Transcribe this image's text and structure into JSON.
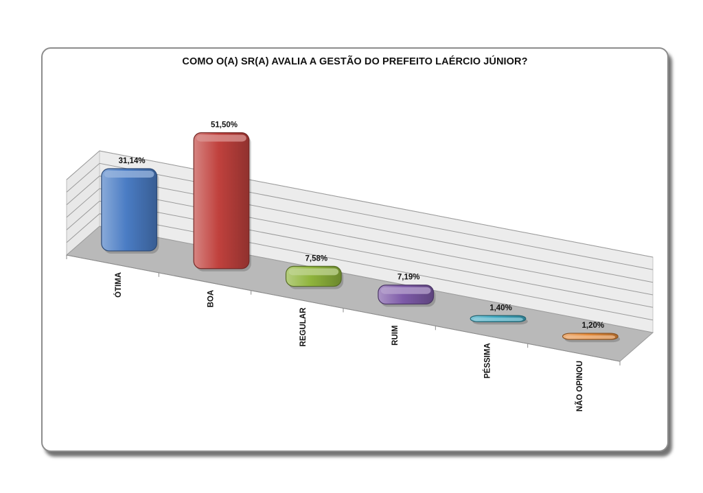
{
  "chart_data": {
    "type": "bar",
    "title": "COMO O(A) SR(A) AVALIA A GESTÃO DO PREFEITO LAÉRCIO JÚNIOR?",
    "categories": [
      "ÓTIMA",
      "BOA",
      "REGULAR",
      "RUIM",
      "PÉSSIMA",
      "NÃO OPINOU"
    ],
    "values": [
      31.14,
      51.5,
      7.58,
      7.19,
      1.4,
      1.2
    ],
    "data_labels": [
      "31,14%",
      "51,50%",
      "7,58%",
      "7,19%",
      "1,40%",
      "1,20%"
    ],
    "colors": [
      "#4a7cc4",
      "#c0413d",
      "#8fb43c",
      "#7d5aa8",
      "#3ea8c0",
      "#e48a3a"
    ],
    "xlabel": "",
    "ylabel": "",
    "ylim": [
      0,
      60
    ],
    "grid": true,
    "legend": "none",
    "style": "3d"
  }
}
